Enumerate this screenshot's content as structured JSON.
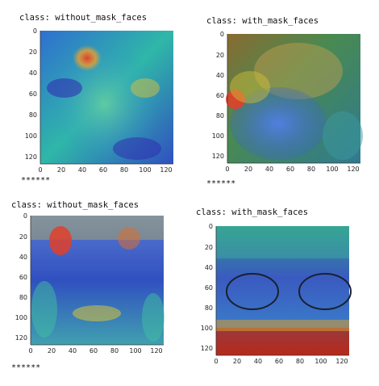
{
  "panels": [
    {
      "label": "class: without_mask_faces",
      "stars": "******",
      "x_ticks": [
        "0",
        "20",
        "40",
        "60",
        "80",
        "100",
        "120"
      ],
      "y_ticks": [
        "0",
        "20",
        "40",
        "60",
        "80",
        "100",
        "120"
      ],
      "colors": {
        "base": "#3a78c8",
        "face": "#2fb7a8",
        "hot": "#e0402a",
        "warm": "#d8c23a"
      }
    },
    {
      "label": "class: with_mask_faces",
      "stars": "******",
      "x_ticks": [
        "0",
        "20",
        "40",
        "60",
        "80",
        "100",
        "120"
      ],
      "y_ticks": [
        "0",
        "20",
        "40",
        "60",
        "80",
        "100",
        "120"
      ],
      "colors": {
        "base": "#4a8a50",
        "face": "#3a66c8",
        "hot": "#e0402a",
        "warm": "#d8c23a"
      }
    },
    {
      "label": "class: without_mask_faces",
      "stars": "******",
      "x_ticks": [
        "0",
        "20",
        "40",
        "60",
        "80",
        "100",
        "120"
      ],
      "y_ticks": [
        "0",
        "20",
        "40",
        "60",
        "80",
        "100",
        "120"
      ],
      "colors": {
        "base": "#3050c0",
        "face": "#4a6ad0",
        "hot": "#e0402a",
        "warm": "#d8c23a"
      }
    },
    {
      "label": "class: with_mask_faces",
      "stars": "",
      "x_ticks": [
        "0",
        "20",
        "40",
        "60",
        "80",
        "100",
        "120"
      ],
      "y_ticks": [
        "0",
        "20",
        "40",
        "60",
        "80",
        "100",
        "120"
      ],
      "colors": {
        "base": "#2f9d8a",
        "face": "#3a78c8",
        "hot": "#c83020",
        "warm": "#d8c23a"
      }
    }
  ]
}
